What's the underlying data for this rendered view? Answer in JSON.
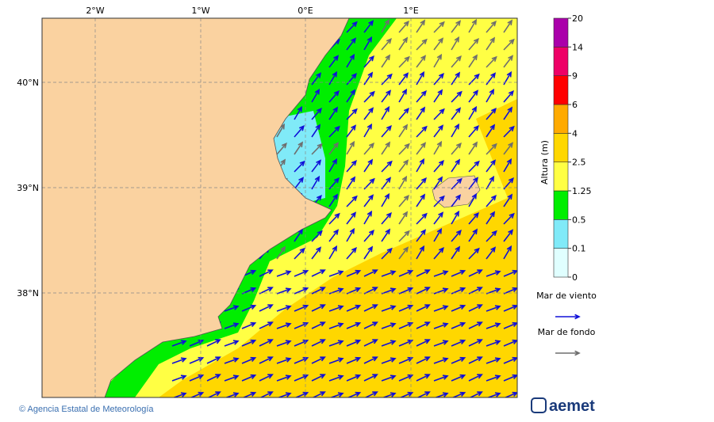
{
  "map": {
    "lon_labels": [
      "2°W",
      "1°W",
      "0°E",
      "1°E"
    ],
    "lat_labels": [
      "40°N",
      "39°N",
      "38°N"
    ]
  },
  "colorbar": {
    "title": "Altura (m)",
    "ticks": [
      "0",
      "0.1",
      "0.5",
      "1.25",
      "2.5",
      "4",
      "6",
      "9",
      "14",
      "20"
    ],
    "colors": [
      "#e0ffff",
      "#80eaf8",
      "#00ee00",
      "#ffff44",
      "#ffd700",
      "#ffaa00",
      "#ff0000",
      "#ee0066",
      "#aa00aa"
    ]
  },
  "legend": [
    {
      "label": "Mar de viento",
      "color": "#1010d8"
    },
    {
      "label": "Mar de fondo",
      "color": "#6e6e6e"
    }
  ],
  "footer": {
    "credit": "© Agencia Estatal de Meteorología",
    "logo": "aemet"
  }
}
